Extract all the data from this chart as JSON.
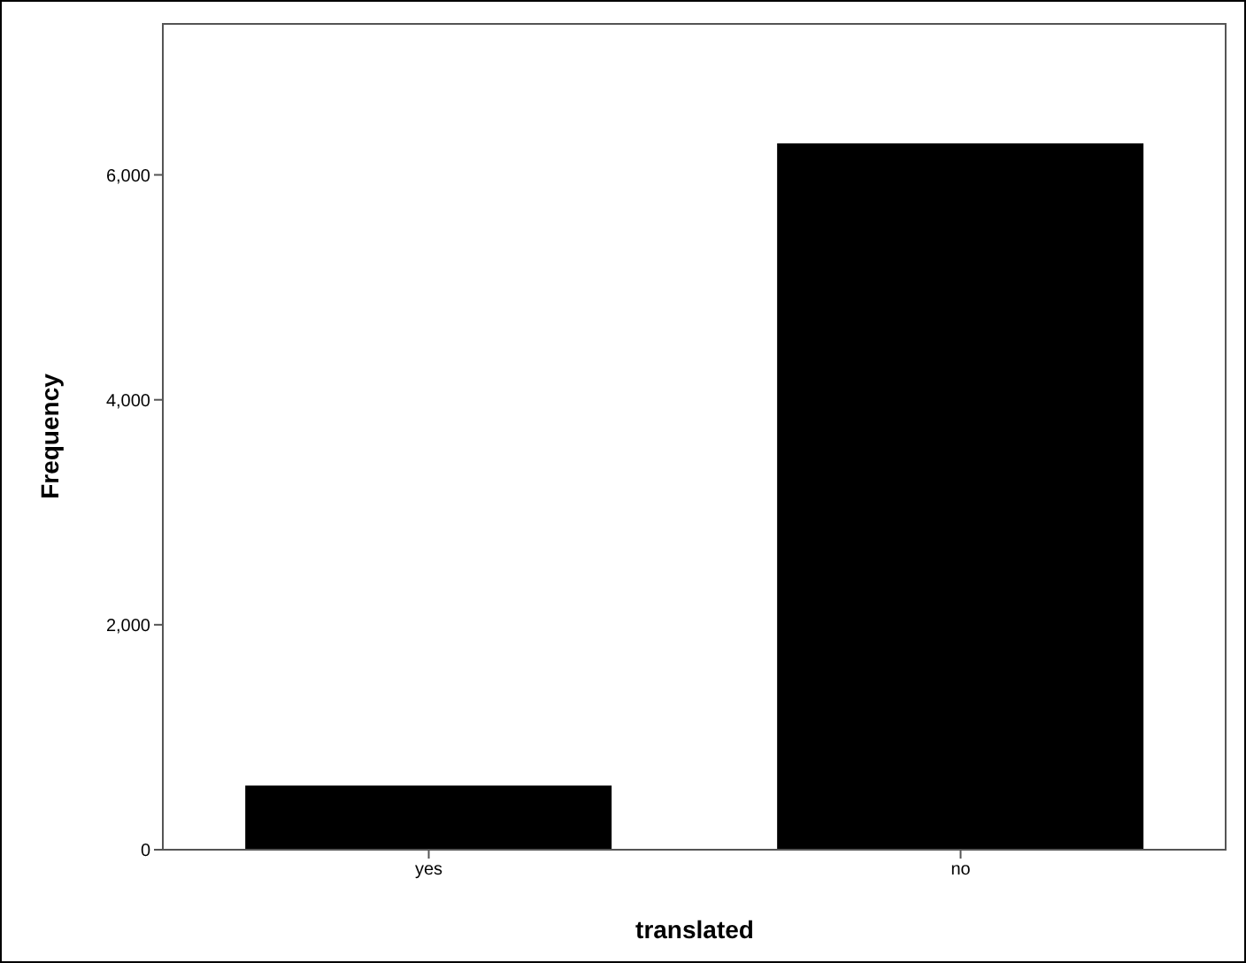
{
  "chart_data": {
    "type": "bar",
    "xlabel": "translated",
    "ylabel": "Frequency",
    "categories": [
      "yes",
      "no"
    ],
    "values": [
      570,
      6280
    ],
    "color": "#000000",
    "ylim": [
      0,
      7350
    ],
    "yticks": [
      {
        "value": 0,
        "label": "0"
      },
      {
        "value": 2000,
        "label": "2,000"
      },
      {
        "value": 4000,
        "label": "4,000"
      },
      {
        "value": 6000,
        "label": "6,000"
      }
    ],
    "grid": false,
    "legend": false
  }
}
